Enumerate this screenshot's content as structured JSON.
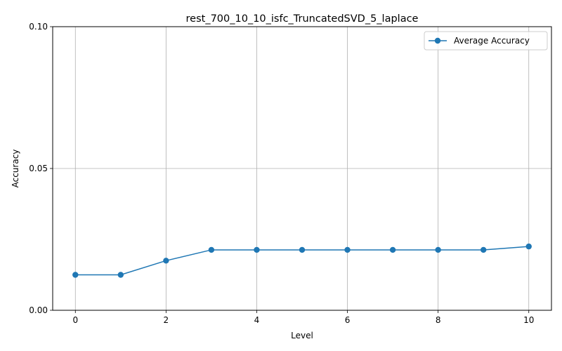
{
  "chart_data": {
    "type": "line",
    "title": "rest_700_10_10_isfc_TruncatedSVD_5_laplace",
    "xlabel": "Level",
    "ylabel": "Accuracy",
    "xlim": [
      -0.5,
      10.5
    ],
    "ylim": [
      0,
      0.1
    ],
    "xticks": [
      0,
      2,
      4,
      6,
      8,
      10
    ],
    "xtick_labels": [
      "0",
      "2",
      "4",
      "6",
      "8",
      "10"
    ],
    "yticks": [
      0,
      0.05,
      0.1
    ],
    "ytick_labels": [
      "0.00",
      "0.05",
      "0.10"
    ],
    "grid": true,
    "legend_position": "top-right",
    "x": [
      0,
      1,
      2,
      3,
      4,
      5,
      6,
      7,
      8,
      9,
      10
    ],
    "series": [
      {
        "name": "Average Accuracy",
        "color": "#1f77b4",
        "marker": "circle",
        "values": [
          0.0125,
          0.0125,
          0.0175,
          0.0213,
          0.0213,
          0.0213,
          0.0213,
          0.0213,
          0.0213,
          0.0213,
          0.0225
        ]
      }
    ]
  }
}
